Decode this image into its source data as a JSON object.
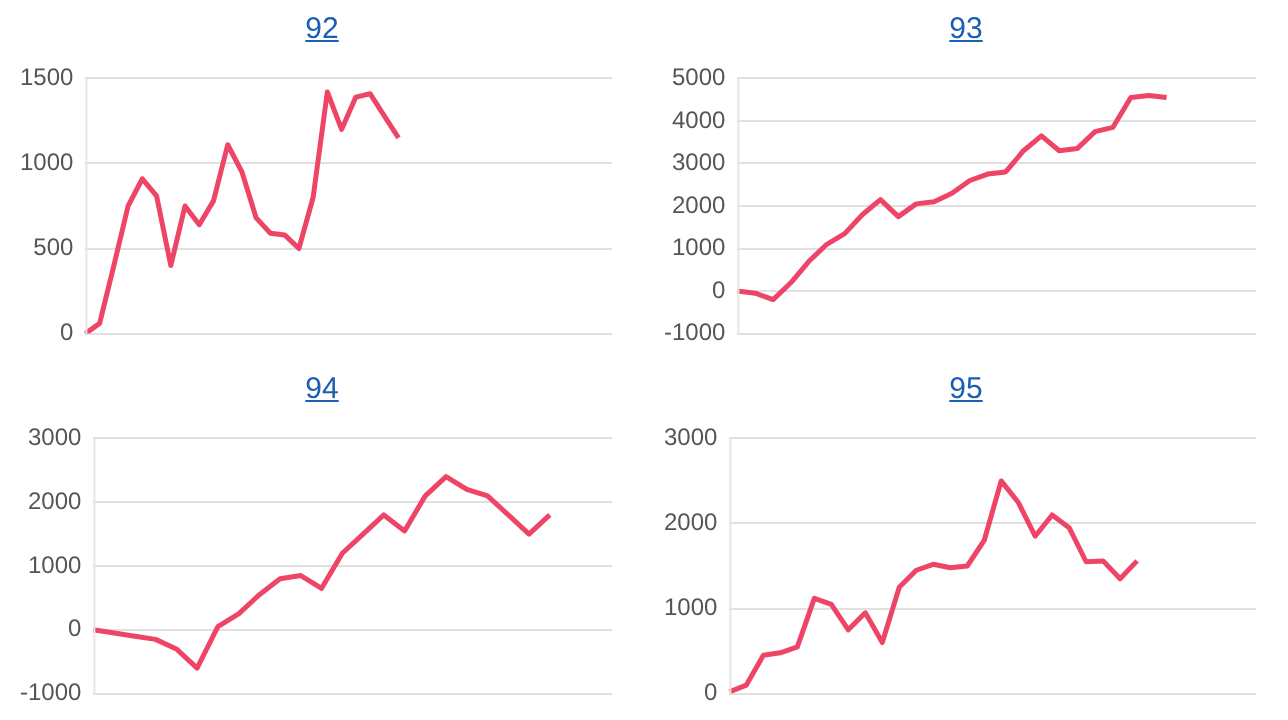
{
  "chart_data": [
    {
      "type": "line",
      "title": "92",
      "categories": [
        null,
        null,
        null,
        null,
        null,
        null,
        null,
        null,
        null,
        null,
        null,
        null,
        null,
        null,
        null,
        null,
        null,
        null,
        null,
        null,
        null,
        null,
        null,
        null,
        null,
        null,
        null,
        null,
        null,
        null,
        null,
        null,
        null,
        null,
        null,
        null,
        null,
        null
      ],
      "series": [
        {
          "color": "#ee4466",
          "values": [
            0,
            60,
            400,
            750,
            910,
            810,
            400,
            750,
            640,
            780,
            1110,
            950,
            680,
            590,
            580,
            500,
            800,
            1420,
            1200,
            1390,
            1410,
            1280,
            1150,
            null,
            null,
            null,
            null,
            null,
            null,
            null,
            null,
            null,
            null,
            null,
            null,
            null,
            null,
            null
          ]
        }
      ],
      "ylim": [
        0,
        1500
      ],
      "yticks": [
        0,
        500,
        1000,
        1500
      ],
      "grid": "y",
      "legend": false,
      "tick_labels": "y",
      "marker": "none"
    },
    {
      "type": "line",
      "title": "93",
      "categories": [
        null,
        null,
        null,
        null,
        null,
        null,
        null,
        null,
        null,
        null,
        null,
        null,
        null,
        null,
        null,
        null,
        null,
        null,
        null,
        null,
        null,
        null,
        null,
        null,
        null,
        null,
        null,
        null,
        null,
        null
      ],
      "series": [
        {
          "color": "#ee4466",
          "values": [
            0,
            -50,
            -200,
            200,
            700,
            1100,
            1350,
            1800,
            2150,
            1750,
            2050,
            2100,
            2300,
            2600,
            2750,
            2800,
            3300,
            3650,
            3300,
            3350,
            3750,
            3850,
            4550,
            4600,
            4550,
            null,
            null,
            null,
            null,
            null
          ]
        }
      ],
      "ylim": [
        -1000,
        5000
      ],
      "yticks": [
        -1000,
        0,
        1000,
        2000,
        3000,
        4000,
        5000
      ],
      "grid": "y",
      "legend": false,
      "tick_labels": "y",
      "marker": "none"
    },
    {
      "type": "line",
      "title": "94",
      "categories": [
        null,
        null,
        null,
        null,
        null,
        null,
        null,
        null,
        null,
        null,
        null,
        null,
        null,
        null,
        null,
        null,
        null,
        null,
        null,
        null,
        null,
        null,
        null,
        null,
        null,
        null
      ],
      "series": [
        {
          "color": "#ee4466",
          "values": [
            0,
            -50,
            -100,
            -150,
            -300,
            -600,
            50,
            250,
            550,
            800,
            850,
            650,
            1200,
            1500,
            1800,
            1550,
            2100,
            2400,
            2200,
            2100,
            1800,
            1500,
            1800,
            null,
            null,
            null
          ]
        }
      ],
      "ylim": [
        -1000,
        3000
      ],
      "yticks": [
        -1000,
        0,
        1000,
        2000,
        3000
      ],
      "grid": "y",
      "legend": false,
      "tick_labels": "y",
      "marker": "none"
    },
    {
      "type": "line",
      "title": "95",
      "categories": [
        null,
        null,
        null,
        null,
        null,
        null,
        null,
        null,
        null,
        null,
        null,
        null,
        null,
        null,
        null,
        null,
        null,
        null,
        null,
        null,
        null,
        null,
        null,
        null,
        null,
        null,
        null,
        null,
        null,
        null,
        null,
        null
      ],
      "series": [
        {
          "color": "#ee4466",
          "values": [
            20,
            100,
            450,
            480,
            550,
            1120,
            1050,
            750,
            950,
            600,
            1250,
            1450,
            1520,
            1480,
            1500,
            1800,
            2500,
            2250,
            1850,
            2100,
            1950,
            1550,
            1560,
            1350,
            1560,
            null,
            null,
            null,
            null,
            null,
            null,
            null
          ]
        }
      ],
      "ylim": [
        0,
        3000
      ],
      "yticks": [
        0,
        1000,
        2000,
        3000
      ],
      "grid": "y",
      "legend": false,
      "tick_labels": "y",
      "marker": "none"
    }
  ]
}
